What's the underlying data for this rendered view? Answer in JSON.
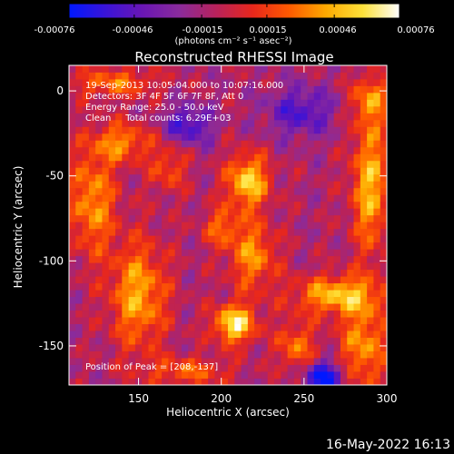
{
  "footer_timestamp": "16-May-2022 16:13",
  "colorbar": {
    "tick_labels": [
      "-0.00076",
      "-0.00046",
      "-0.00015",
      "0.00015",
      "0.00046",
      "0.00076"
    ],
    "tick_values": [
      -0.00076,
      -0.00046,
      -0.00015,
      0.00015,
      0.00046,
      0.00076
    ],
    "range": [
      -0.00076,
      0.00076
    ],
    "units_label": "(photons cm⁻² s⁻¹ asec⁻²)",
    "colormap": [
      "#0018ff",
      "#3a14d8",
      "#6a16b4",
      "#8a2b9c",
      "#b8225c",
      "#e8271c",
      "#ff5a00",
      "#ffaa00",
      "#ffe23a",
      "#ffffff"
    ]
  },
  "chart_data": {
    "type": "heatmap",
    "title": "Reconstructed RHESSI Image",
    "xlabel": "Heliocentric X (arcsec)",
    "ylabel": "Heliocentric Y (arcsec)",
    "xlim": [
      108,
      300
    ],
    "ylim": [
      -173,
      15
    ],
    "x_ticks": [
      150,
      200,
      250,
      300
    ],
    "y_ticks": [
      0,
      -50,
      -100,
      -150
    ],
    "x_tick_labels": [
      "150",
      "200",
      "250",
      "300"
    ],
    "y_tick_labels": [
      "0",
      "-50",
      "-100",
      "-150"
    ],
    "annotations": [
      "19-Sep-2013 10:05:04.000 to 10:07:16.000",
      "Detectors: 3F 4F 5F 6F 7F 8F, Att 0",
      "Energy Range: 25.0 - 50.0 keV",
      "Clean     Total counts: 6.29E+03"
    ],
    "peak_label": "Position of Peak = [208,-137]",
    "peak": [
      208,
      -137
    ],
    "blobs": [
      {
        "x": 208,
        "y": -137,
        "amp": 0.00076,
        "sx": 9,
        "sy": 8
      },
      {
        "x": 216,
        "y": -53,
        "amp": 0.00068,
        "sx": 9,
        "sy": 11
      },
      {
        "x": 219,
        "y": -97,
        "amp": 0.00048,
        "sx": 10,
        "sy": 14
      },
      {
        "x": 200,
        "y": -80,
        "amp": 0.00036,
        "sx": 8,
        "sy": 8
      },
      {
        "x": 150,
        "y": -120,
        "amp": 0.00055,
        "sx": 12,
        "sy": 22
      },
      {
        "x": 122,
        "y": -65,
        "amp": 0.0005,
        "sx": 10,
        "sy": 22
      },
      {
        "x": 140,
        "y": -30,
        "amp": 0.00045,
        "sx": 12,
        "sy": 8
      },
      {
        "x": 135,
        "y": 5,
        "amp": 0.0004,
        "sx": 18,
        "sy": 6
      },
      {
        "x": 290,
        "y": -55,
        "amp": 0.00058,
        "sx": 8,
        "sy": 28
      },
      {
        "x": 290,
        "y": -5,
        "amp": 0.00042,
        "sx": 8,
        "sy": 10
      },
      {
        "x": 270,
        "y": -120,
        "amp": 0.0006,
        "sx": 18,
        "sy": 8
      },
      {
        "x": 286,
        "y": -150,
        "amp": 0.0005,
        "sx": 10,
        "sy": 18
      },
      {
        "x": 245,
        "y": -150,
        "amp": 0.00042,
        "sx": 8,
        "sy": 10
      },
      {
        "x": 180,
        "y": -165,
        "amp": 0.00035,
        "sx": 18,
        "sy": 6
      },
      {
        "x": 168,
        "y": -45,
        "amp": 0.00032,
        "sx": 8,
        "sy": 10
      },
      {
        "x": 262,
        "y": -168,
        "amp": -0.0007,
        "sx": 8,
        "sy": 6
      },
      {
        "x": 180,
        "y": -20,
        "amp": -0.00045,
        "sx": 10,
        "sy": 8
      },
      {
        "x": 248,
        "y": -12,
        "amp": -0.0004,
        "sx": 14,
        "sy": 10
      }
    ],
    "background": -0.00012
  }
}
